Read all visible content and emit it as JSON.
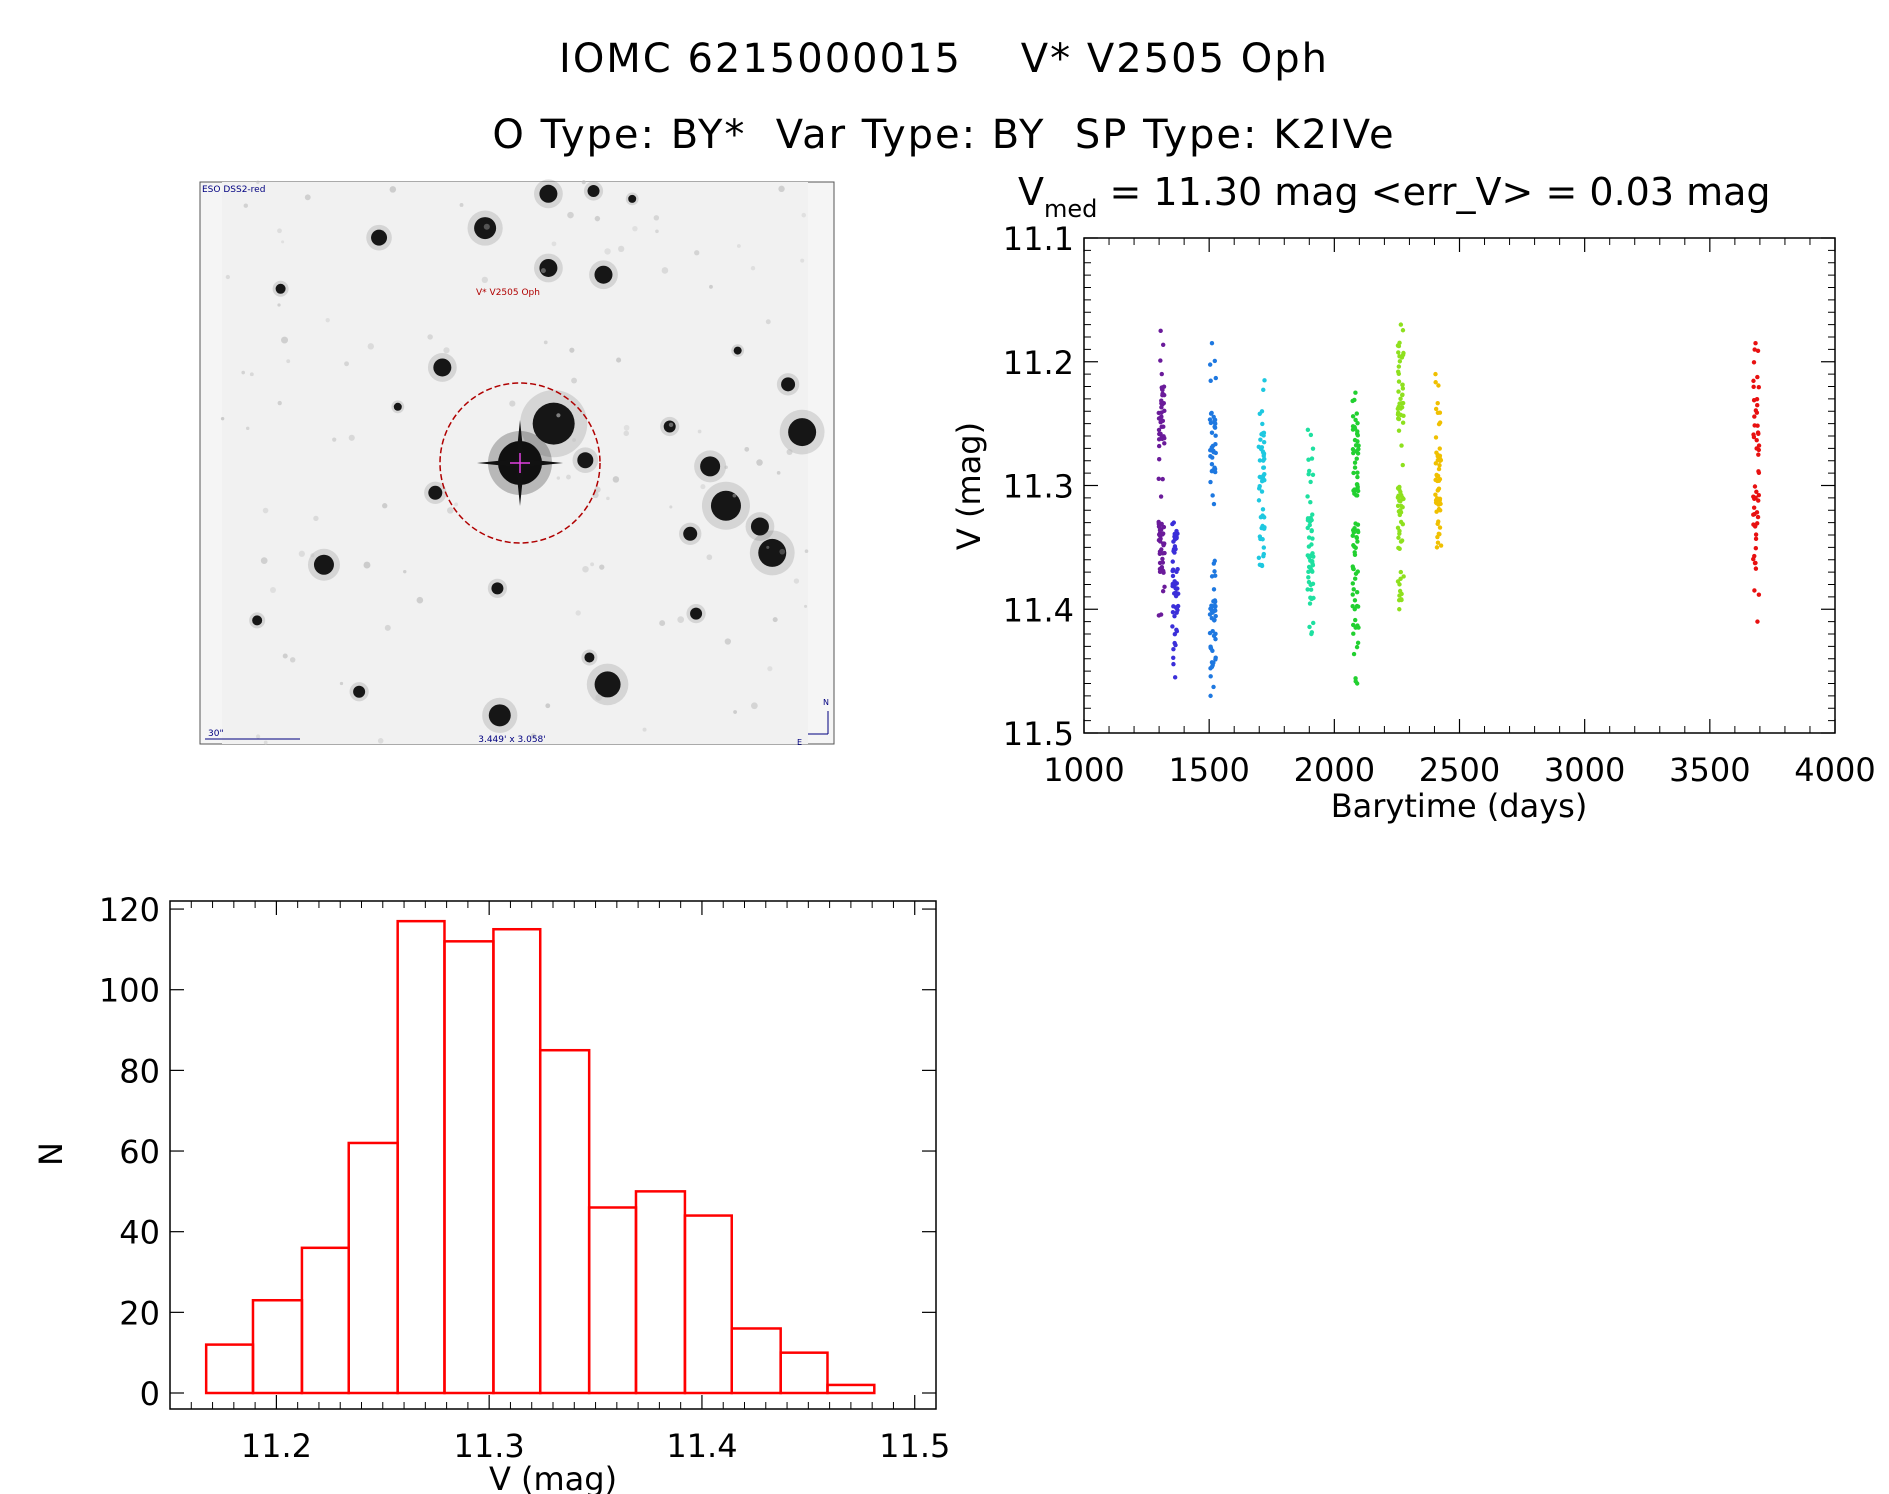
{
  "title_line1": "IOMC 6215000015    V* V2505 Oph",
  "title_line2": "O Type: BY*  Var Type: BY  SP Type: K2IVe",
  "finder": {
    "survey_label": "ESO DSS2-red",
    "object_label": "V* V2505 Oph",
    "scale_label": "30\"",
    "fov_label": "3.449' x 3.058'",
    "north_label": "N",
    "east_label": "E",
    "stars": [
      [
        0.557,
        0.021,
        9
      ],
      [
        0.634,
        0.016,
        6
      ],
      [
        0.268,
        0.099,
        8
      ],
      [
        0.449,
        0.082,
        11
      ],
      [
        0.557,
        0.153,
        9
      ],
      [
        0.651,
        0.165,
        9
      ],
      [
        0.376,
        0.33,
        9
      ],
      [
        0.966,
        0.36,
        7
      ],
      [
        0.566,
        0.43,
        21
      ],
      [
        0.99,
        0.445,
        14
      ],
      [
        0.764,
        0.435,
        6
      ],
      [
        0.833,
        0.506,
        10
      ],
      [
        0.62,
        0.495,
        8
      ],
      [
        0.364,
        0.553,
        7
      ],
      [
        0.86,
        0.576,
        15
      ],
      [
        0.918,
        0.613,
        9
      ],
      [
        0.939,
        0.66,
        14
      ],
      [
        0.799,
        0.626,
        7
      ],
      [
        0.174,
        0.681,
        10
      ],
      [
        0.47,
        0.723,
        6
      ],
      [
        0.809,
        0.768,
        6
      ],
      [
        0.627,
        0.846,
        5
      ],
      [
        0.658,
        0.894,
        13
      ],
      [
        0.234,
        0.907,
        6
      ],
      [
        0.474,
        0.949,
        11
      ],
      [
        0.06,
        0.78,
        5
      ],
      [
        0.1,
        0.19,
        5
      ],
      [
        0.88,
        0.3,
        4
      ],
      [
        0.3,
        0.4,
        4
      ],
      [
        0.7,
        0.03,
        4
      ]
    ]
  },
  "chart_data": [
    {
      "type": "scatter",
      "title": "V_med = 11.30 mag <err_V> = 0.03 mag",
      "title_main": "V",
      "title_sub": "med",
      "title_rest": " = 11.30 mag <err_V> = 0.03 mag",
      "xlabel": "Barytime (days)",
      "ylabel": "V (mag)",
      "xlim": [
        1000,
        4000
      ],
      "ylim": [
        11.1,
        11.5
      ],
      "y_reversed": true,
      "xticks": [
        1000,
        1500,
        2000,
        2500,
        3000,
        3500,
        4000
      ],
      "yticks": [
        11.1,
        11.2,
        11.3,
        11.4,
        11.5
      ],
      "clusters": [
        {
          "x": 1310,
          "y_min": 11.175,
          "y_max": 11.405,
          "color": "#6a1b9a",
          "dense": [
            [
              11.22,
              11.27
            ],
            [
              11.33,
              11.37
            ]
          ]
        },
        {
          "x": 1365,
          "y_min": 11.33,
          "y_max": 11.455,
          "color": "#3b2fd9",
          "dense": [
            [
              11.34,
              11.41
            ]
          ]
        },
        {
          "x": 1515,
          "y_min": 11.185,
          "y_max": 11.47,
          "color": "#1e78e0",
          "dense": [
            [
              11.24,
              11.29
            ],
            [
              11.38,
              11.45
            ]
          ]
        },
        {
          "x": 1710,
          "y_min": 11.215,
          "y_max": 11.365,
          "color": "#1ec8e0",
          "dense": [
            [
              11.25,
              11.35
            ]
          ]
        },
        {
          "x": 1905,
          "y_min": 11.255,
          "y_max": 11.42,
          "color": "#1ee0a0",
          "dense": [
            [
              11.32,
              11.4
            ]
          ]
        },
        {
          "x": 2085,
          "y_min": 11.225,
          "y_max": 11.46,
          "color": "#22d030",
          "dense": [
            [
              11.24,
              11.31
            ],
            [
              11.33,
              11.44
            ]
          ]
        },
        {
          "x": 2265,
          "y_min": 11.17,
          "y_max": 11.4,
          "color": "#8ee01e",
          "dense": [
            [
              11.18,
              11.25
            ],
            [
              11.3,
              11.38
            ]
          ]
        },
        {
          "x": 2415,
          "y_min": 11.21,
          "y_max": 11.35,
          "color": "#f0c000",
          "dense": [
            [
              11.27,
              11.34
            ]
          ]
        },
        {
          "x": 3685,
          "y_min": 11.185,
          "y_max": 11.41,
          "color": "#e81010",
          "dense": [
            [
              11.21,
              11.36
            ]
          ]
        }
      ]
    },
    {
      "type": "bar",
      "subtype": "histogram",
      "xlabel": "V (mag)",
      "ylabel": "N",
      "xlim": [
        11.15,
        11.51
      ],
      "ylim": [
        0,
        122
      ],
      "xticks": [
        11.2,
        11.3,
        11.4,
        11.5
      ],
      "yticks": [
        0,
        20,
        40,
        60,
        80,
        100,
        120
      ],
      "bar_color": "#ff0000",
      "bin_edges": [
        11.167,
        11.189,
        11.212,
        11.234,
        11.257,
        11.279,
        11.302,
        11.324,
        11.347,
        11.369,
        11.392,
        11.414,
        11.437,
        11.459,
        11.481
      ],
      "values": [
        12,
        23,
        36,
        62,
        117,
        112,
        115,
        85,
        46,
        50,
        44,
        16,
        10,
        2
      ]
    }
  ]
}
